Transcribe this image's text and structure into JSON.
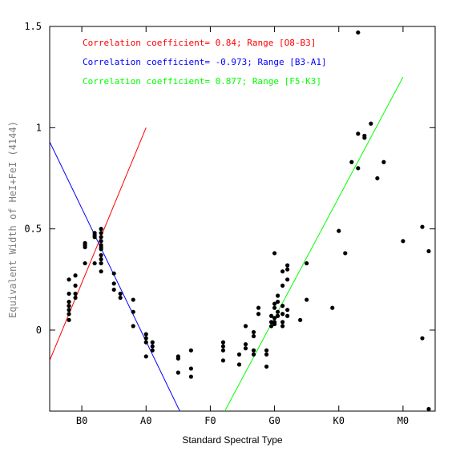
{
  "chart_data": {
    "type": "scatter",
    "xlabel": "Standard Spectral Type",
    "ylabel": "Equivalent Width of HeI+FeI (4144)",
    "xlim": [
      0,
      12
    ],
    "ylim": [
      -0.4,
      1.5
    ],
    "x_ticks": [
      {
        "pos": 1,
        "label": "B0"
      },
      {
        "pos": 3,
        "label": "A0"
      },
      {
        "pos": 5,
        "label": "F0"
      },
      {
        "pos": 7,
        "label": "G0"
      },
      {
        "pos": 9,
        "label": "K0"
      },
      {
        "pos": 11,
        "label": "M0"
      }
    ],
    "y_ticks": [
      {
        "pos": 0,
        "label": "0"
      },
      {
        "pos": 0.5,
        "label": "0.5"
      },
      {
        "pos": 1,
        "label": "1"
      },
      {
        "pos": 1.5,
        "label": "1.5"
      }
    ],
    "grid": false,
    "fits": [
      {
        "label": "Correlation coefficient= 0.84; Range [O8-B3]",
        "color": "#ff0000",
        "x": [
          0,
          3
        ],
        "y": [
          -0.15,
          1.0
        ]
      },
      {
        "label": "Correlation coefficient= -0.973; Range [B3-A1]",
        "color": "#0000ff",
        "x": [
          0,
          4.05
        ],
        "y": [
          0.93,
          -0.4
        ]
      },
      {
        "label": "Correlation coefficient= 0.877; Range [F5-K3]",
        "color": "#00ff00",
        "x": [
          5.45,
          11
        ],
        "y": [
          -0.4,
          1.25
        ]
      }
    ],
    "points": [
      [
        0.6,
        0.25
      ],
      [
        0.6,
        0.18
      ],
      [
        0.6,
        0.14
      ],
      [
        0.6,
        0.12
      ],
      [
        0.6,
        0.1
      ],
      [
        0.6,
        0.08
      ],
      [
        0.6,
        0.05
      ],
      [
        0.8,
        0.27
      ],
      [
        0.8,
        0.22
      ],
      [
        0.8,
        0.18
      ],
      [
        0.8,
        0.16
      ],
      [
        1.1,
        0.43
      ],
      [
        1.1,
        0.42
      ],
      [
        1.1,
        0.41
      ],
      [
        1.1,
        0.33
      ],
      [
        1.4,
        0.48
      ],
      [
        1.4,
        0.47
      ],
      [
        1.4,
        0.46
      ],
      [
        1.4,
        0.33
      ],
      [
        1.6,
        0.5
      ],
      [
        1.6,
        0.48
      ],
      [
        1.6,
        0.46
      ],
      [
        1.6,
        0.44
      ],
      [
        1.6,
        0.42
      ],
      [
        1.6,
        0.41
      ],
      [
        1.6,
        0.4
      ],
      [
        1.6,
        0.37
      ],
      [
        1.6,
        0.35
      ],
      [
        1.6,
        0.33
      ],
      [
        1.6,
        0.29
      ],
      [
        2.0,
        0.28
      ],
      [
        2.0,
        0.23
      ],
      [
        2.0,
        0.2
      ],
      [
        2.2,
        0.18
      ],
      [
        2.2,
        0.16
      ],
      [
        2.6,
        0.15
      ],
      [
        2.6,
        0.09
      ],
      [
        2.6,
        0.02
      ],
      [
        3.0,
        -0.02
      ],
      [
        3.0,
        -0.04
      ],
      [
        3.0,
        -0.06
      ],
      [
        3.0,
        -0.13
      ],
      [
        3.2,
        -0.06
      ],
      [
        3.2,
        -0.08
      ],
      [
        3.2,
        -0.1
      ],
      [
        4.0,
        -0.13
      ],
      [
        4.0,
        -0.14
      ],
      [
        4.0,
        -0.21
      ],
      [
        4.4,
        -0.1
      ],
      [
        4.4,
        -0.19
      ],
      [
        4.4,
        -0.23
      ],
      [
        5.4,
        -0.06
      ],
      [
        5.4,
        -0.08
      ],
      [
        5.4,
        -0.1
      ],
      [
        5.4,
        -0.15
      ],
      [
        5.9,
        -0.12
      ],
      [
        5.9,
        -0.17
      ],
      [
        6.1,
        0.02
      ],
      [
        6.1,
        -0.07
      ],
      [
        6.1,
        -0.09
      ],
      [
        6.35,
        -0.01
      ],
      [
        6.35,
        -0.03
      ],
      [
        6.35,
        -0.1
      ],
      [
        6.35,
        -0.12
      ],
      [
        6.5,
        0.11
      ],
      [
        6.5,
        0.08
      ],
      [
        6.75,
        -0.1
      ],
      [
        6.75,
        -0.12
      ],
      [
        6.75,
        -0.18
      ],
      [
        6.9,
        0.07
      ],
      [
        6.9,
        0.04
      ],
      [
        6.9,
        0.02
      ],
      [
        7.0,
        0.38
      ],
      [
        7.0,
        0.13
      ],
      [
        7.0,
        0.11
      ],
      [
        7.0,
        0.06
      ],
      [
        7.0,
        0.04
      ],
      [
        7.0,
        0.03
      ],
      [
        7.1,
        0.17
      ],
      [
        7.1,
        0.14
      ],
      [
        7.1,
        0.09
      ],
      [
        7.1,
        0.07
      ],
      [
        7.25,
        0.29
      ],
      [
        7.25,
        0.22
      ],
      [
        7.25,
        0.12
      ],
      [
        7.25,
        0.08
      ],
      [
        7.25,
        0.04
      ],
      [
        7.25,
        0.02
      ],
      [
        7.4,
        0.32
      ],
      [
        7.4,
        0.3
      ],
      [
        7.4,
        0.25
      ],
      [
        7.4,
        0.1
      ],
      [
        7.4,
        0.07
      ],
      [
        7.8,
        0.05
      ],
      [
        8.0,
        0.33
      ],
      [
        8.0,
        0.15
      ],
      [
        8.8,
        0.11
      ],
      [
        9.0,
        0.49
      ],
      [
        9.2,
        0.38
      ],
      [
        9.4,
        0.83
      ],
      [
        9.6,
        1.47
      ],
      [
        9.6,
        0.97
      ],
      [
        9.6,
        0.8
      ],
      [
        9.8,
        0.96
      ],
      [
        9.8,
        0.95
      ],
      [
        10.0,
        1.02
      ],
      [
        10.2,
        0.75
      ],
      [
        10.4,
        0.83
      ],
      [
        11.0,
        0.44
      ],
      [
        11.6,
        0.51
      ],
      [
        11.6,
        -0.04
      ],
      [
        11.8,
        0.39
      ],
      [
        11.8,
        -0.39
      ]
    ]
  }
}
